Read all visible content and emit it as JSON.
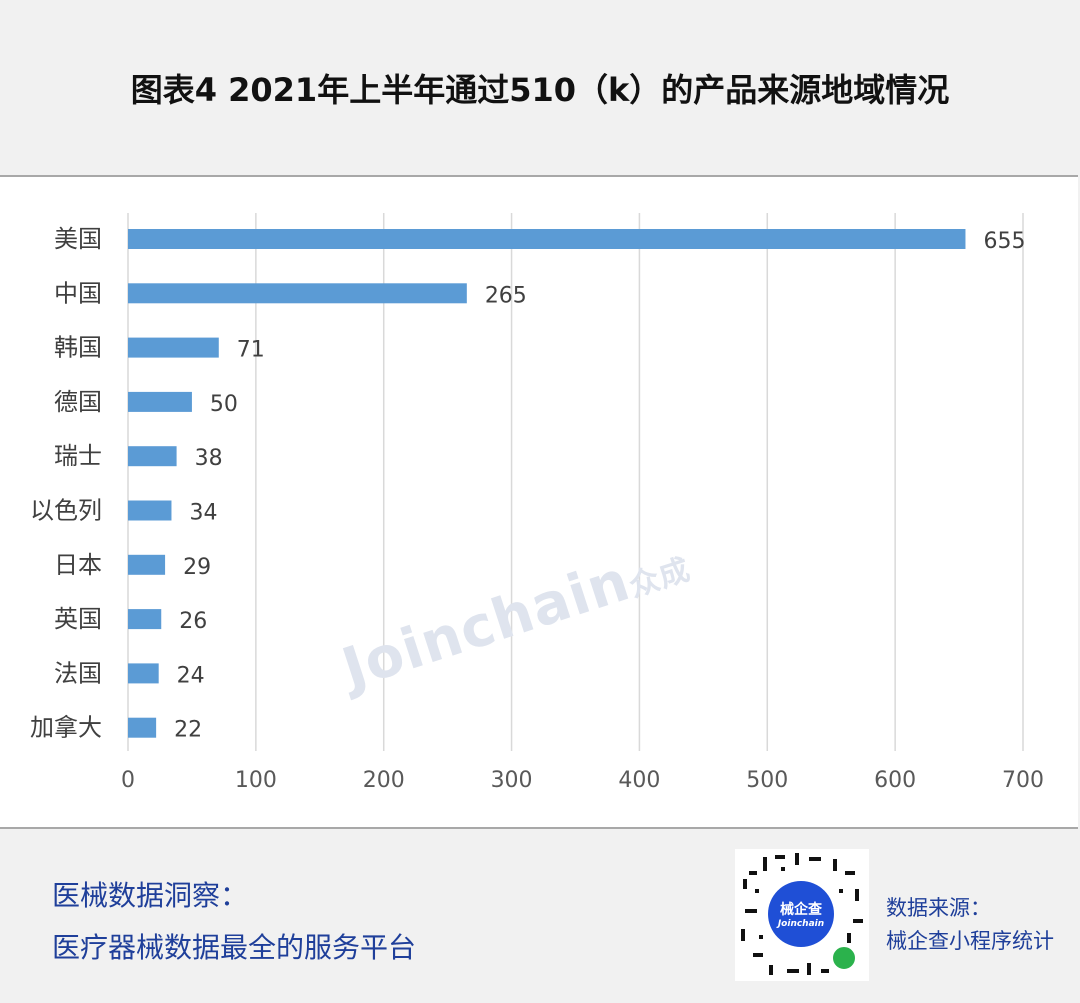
{
  "title": "图表4 2021年上半年通过510（k）的产品来源地域情况",
  "chart_data": {
    "type": "bar",
    "orientation": "horizontal",
    "categories": [
      "美国",
      "中国",
      "韩国",
      "德国",
      "瑞士",
      "以色列",
      "日本",
      "英国",
      "法国",
      "加拿大"
    ],
    "values": [
      655,
      265,
      71,
      50,
      38,
      34,
      29,
      26,
      24,
      22
    ],
    "xlim": [
      0,
      700
    ],
    "xticks": [
      0,
      100,
      200,
      300,
      400,
      500,
      600,
      700
    ],
    "grid": "vertical",
    "bar_color": "#5b9bd5"
  },
  "watermark": {
    "latin": "Joinchain",
    "cn": "众成"
  },
  "footer": {
    "line1": "医械数据洞察：",
    "line2": "医疗器械数据最全的服务平台",
    "source_label": "数据来源：",
    "source_value": "械企查小程序统计"
  },
  "qr": {
    "center_cn": "械企查",
    "center_latin": "Joinchain"
  }
}
